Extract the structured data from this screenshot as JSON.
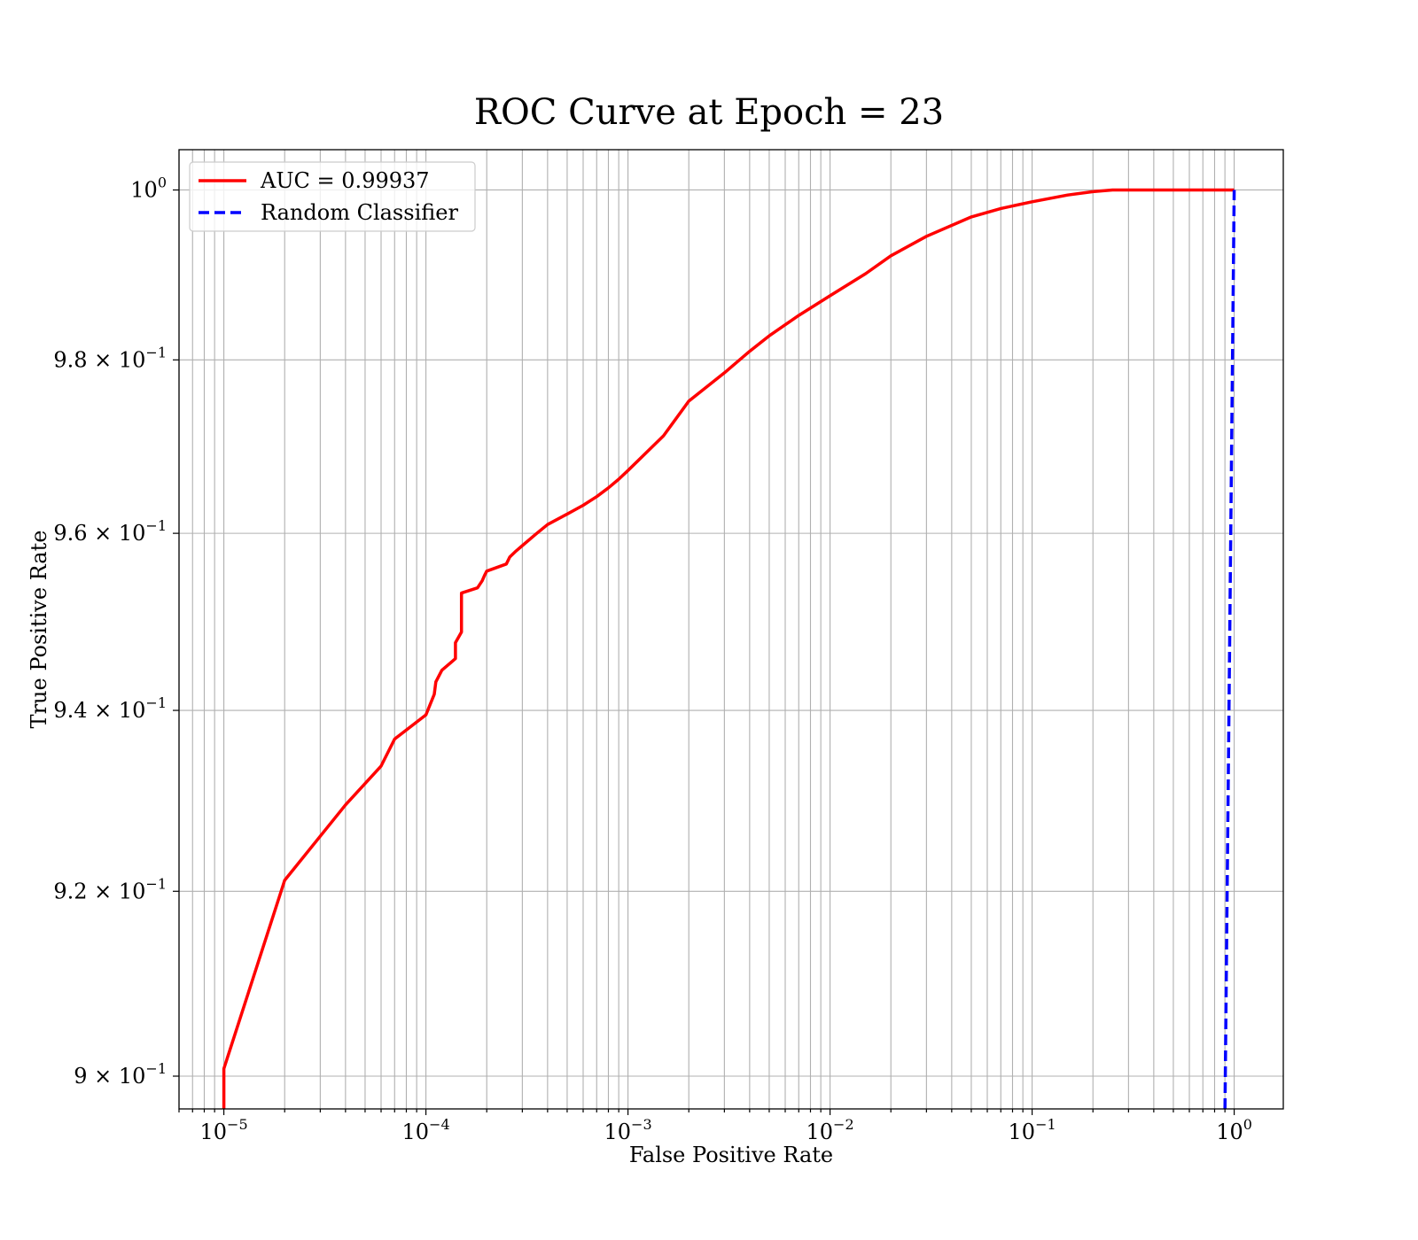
{
  "chart_data": {
    "type": "line",
    "title": "ROC Curve at Epoch = 23",
    "xlabel": "False Positive Rate",
    "ylabel": "True Positive Rate",
    "xscale": "log",
    "yscale": "log",
    "xlim": [
      6e-06,
      1.75
    ],
    "ylim": [
      0.8965,
      1.0048
    ],
    "grid": true,
    "legend_position": "upper-left",
    "x_ticks": [
      {
        "base": "10",
        "exp": "−5",
        "value": 1e-05
      },
      {
        "base": "10",
        "exp": "−4",
        "value": 0.0001
      },
      {
        "base": "10",
        "exp": "−3",
        "value": 0.001
      },
      {
        "base": "10",
        "exp": "−2",
        "value": 0.01
      },
      {
        "base": "10",
        "exp": "−1",
        "value": 0.1
      },
      {
        "base": "10",
        "exp": "0",
        "value": 1
      }
    ],
    "y_ticks": [
      {
        "mant": "9 × ",
        "base": "10",
        "exp": "−1",
        "value": 0.9
      },
      {
        "mant": "9.2 × ",
        "base": "10",
        "exp": "−1",
        "value": 0.92
      },
      {
        "mant": "9.4 × ",
        "base": "10",
        "exp": "−1",
        "value": 0.94
      },
      {
        "mant": "9.6 × ",
        "base": "10",
        "exp": "−1",
        "value": 0.96
      },
      {
        "mant": "9.8 × ",
        "base": "10",
        "exp": "−1",
        "value": 0.98
      },
      {
        "mant": "",
        "base": "10",
        "exp": "0",
        "value": 1.0
      }
    ],
    "series": [
      {
        "name": "AUC = 0.99937",
        "color": "#ff0000",
        "style": "solid",
        "x": [
          1e-05,
          1e-05,
          2e-05,
          4e-05,
          6e-05,
          7e-05,
          0.0001,
          0.00011,
          0.000112,
          0.00012,
          0.00014,
          0.00014,
          0.00015,
          0.00015,
          0.00018,
          0.00019,
          0.000195,
          0.0002,
          0.00025,
          0.00026,
          0.00028,
          0.0003,
          0.00035,
          0.0004,
          0.0005,
          0.0006,
          0.0007,
          0.0008,
          0.0009,
          0.001,
          0.0015,
          0.002,
          0.003,
          0.004,
          0.005,
          0.007,
          0.01,
          0.015,
          0.02,
          0.03,
          0.05,
          0.07,
          0.1,
          0.15,
          0.2,
          0.25,
          0.3,
          0.5,
          1.0
        ],
        "y": [
          0.8965,
          0.9008,
          0.9212,
          0.9295,
          0.9338,
          0.9368,
          0.9395,
          0.9418,
          0.9432,
          0.9445,
          0.9458,
          0.9476,
          0.9488,
          0.9532,
          0.9538,
          0.9546,
          0.9552,
          0.9557,
          0.9565,
          0.9573,
          0.958,
          0.9586,
          0.9599,
          0.961,
          0.9622,
          0.9632,
          0.9642,
          0.9652,
          0.9662,
          0.9672,
          0.9712,
          0.9752,
          0.9785,
          0.981,
          0.9828,
          0.9852,
          0.9875,
          0.9901,
          0.9922,
          0.9945,
          0.9968,
          0.9978,
          0.9986,
          0.9994,
          0.9998,
          1.0,
          1.0,
          1.0,
          1.0
        ]
      },
      {
        "name": "Random Classifier",
        "color": "#0000ff",
        "style": "dashed",
        "x": [
          0.9,
          1.0
        ],
        "y": [
          0.8965,
          1.0
        ]
      }
    ]
  }
}
